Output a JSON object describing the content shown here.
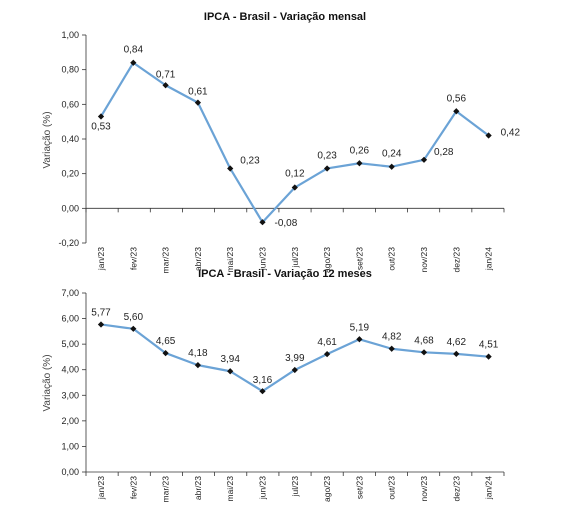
{
  "colors": {
    "line": "#6ba3d6",
    "marker": "#111111",
    "axis": "#333333"
  },
  "chart_data": [
    {
      "type": "line",
      "title": "IPCA - Brasil - Variação mensal",
      "ylabel": "Variação (%)",
      "xlabel": "",
      "categories": [
        "jan/23",
        "fev/23",
        "mar/23",
        "abr/23",
        "mai/23",
        "jun/23",
        "jul/23",
        "ago/23",
        "set/23",
        "out/23",
        "nov/23",
        "dez/23",
        "jan/24"
      ],
      "values": [
        0.53,
        0.84,
        0.71,
        0.61,
        0.23,
        -0.08,
        0.12,
        0.23,
        0.26,
        0.24,
        0.28,
        0.56,
        0.42
      ],
      "data_labels": [
        "0,53",
        "0,84",
        "0,71",
        "0,61",
        "0,23",
        "-0,08",
        "0,12",
        "0,23",
        "0,26",
        "0,24",
        "0,28",
        "0,56",
        "0,42"
      ],
      "ylim": [
        -0.2,
        1.0
      ],
      "yticks": [
        -0.2,
        0,
        0.2,
        0.4,
        0.6,
        0.8,
        1.0
      ],
      "ytick_labels": [
        "-0,20",
        "0,00",
        "0,20",
        "0,40",
        "0,60",
        "0,80",
        "1,00"
      ],
      "grid": false
    },
    {
      "type": "line",
      "title": "IPCA - Brasil - Variação 12 meses",
      "ylabel": "Variação (%)",
      "xlabel": "",
      "categories": [
        "jan/23",
        "fev/23",
        "mar/23",
        "abr/23",
        "mai/23",
        "jun/23",
        "jul/23",
        "ago/23",
        "set/23",
        "out/23",
        "nov/23",
        "dez/23",
        "jan/24"
      ],
      "values": [
        5.77,
        5.6,
        4.65,
        4.18,
        3.94,
        3.16,
        3.99,
        4.61,
        5.19,
        4.82,
        4.68,
        4.62,
        4.51
      ],
      "data_labels": [
        "5,77",
        "5,60",
        "4,65",
        "4,18",
        "3,94",
        "3,16",
        "3,99",
        "4,61",
        "5,19",
        "4,82",
        "4,68",
        "4,62",
        "4,51"
      ],
      "ylim": [
        0,
        7
      ],
      "yticks": [
        0,
        1,
        2,
        3,
        4,
        5,
        6,
        7
      ],
      "ytick_labels": [
        "0,00",
        "1,00",
        "2,00",
        "3,00",
        "4,00",
        "5,00",
        "6,00",
        "7,00"
      ],
      "grid": false
    }
  ]
}
